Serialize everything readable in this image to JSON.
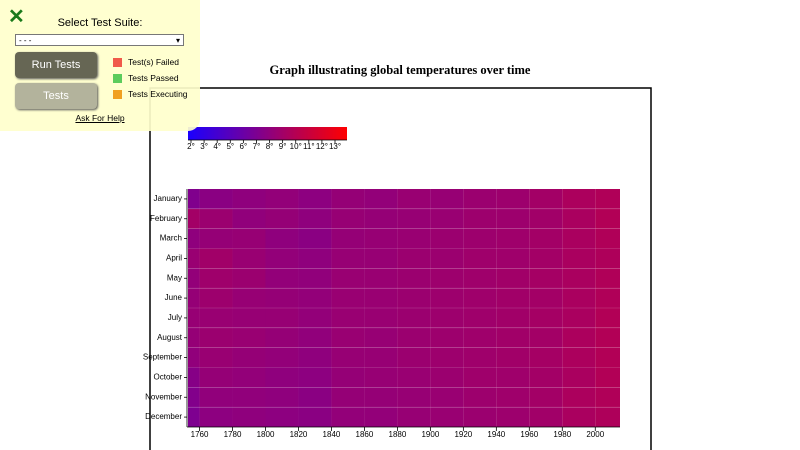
{
  "panel": {
    "heading": "Select Test Suite:",
    "select_option": "- - -",
    "run_button": "Run Tests",
    "tests_button": "Tests",
    "legend": [
      "Test(s) Failed",
      "Tests Passed",
      "Tests Executing"
    ],
    "help_link": "Ask For Help"
  },
  "chart_data": {
    "type": "heatmap",
    "title": "Graph illustrating global temperatures over time",
    "x": [
      1753,
      1760,
      1780,
      1800,
      1820,
      1840,
      1860,
      1880,
      1900,
      1920,
      1940,
      1960,
      1980,
      2000
    ],
    "xlim": [
      1753,
      2015
    ],
    "xticks": [
      1760,
      1780,
      1800,
      1820,
      1840,
      1860,
      1880,
      1900,
      1920,
      1940,
      1960,
      1980,
      2000
    ],
    "categories": [
      "January",
      "February",
      "March",
      "April",
      "May",
      "June",
      "July",
      "August",
      "September",
      "October",
      "November",
      "December"
    ],
    "values": [
      [
        6.9,
        7.4,
        7.6,
        7.8,
        7.5,
        7.9,
        7.8,
        8.1,
        8.0,
        8.2,
        8.3,
        8.6,
        9.0,
        9.2
      ],
      [
        8.6,
        8.2,
        7.7,
        7.9,
        7.6,
        8.0,
        7.9,
        8.0,
        8.1,
        8.3,
        8.3,
        8.5,
        8.9,
        9.3
      ],
      [
        7.6,
        7.9,
        8.0,
        7.6,
        7.4,
        7.9,
        8.0,
        8.1,
        8.2,
        8.3,
        8.4,
        8.6,
        8.9,
        9.2
      ],
      [
        8.1,
        8.5,
        8.1,
        7.8,
        7.6,
        8.0,
        8.0,
        8.2,
        8.2,
        8.4,
        8.4,
        8.6,
        8.9,
        9.1
      ],
      [
        7.8,
        8.4,
        8.2,
        7.8,
        7.7,
        8.1,
        8.1,
        8.2,
        8.3,
        8.4,
        8.5,
        8.7,
        8.9,
        9.2
      ],
      [
        7.9,
        8.3,
        8.0,
        7.9,
        7.8,
        8.1,
        8.1,
        8.2,
        8.3,
        8.4,
        8.5,
        8.6,
        8.9,
        9.2
      ],
      [
        8.0,
        8.1,
        8.0,
        8.0,
        7.8,
        8.1,
        8.1,
        8.2,
        8.3,
        8.4,
        8.5,
        8.7,
        8.9,
        9.3
      ],
      [
        7.9,
        8.2,
        8.1,
        7.9,
        7.7,
        8.1,
        8.0,
        8.2,
        8.3,
        8.4,
        8.5,
        8.6,
        9.0,
        9.3
      ],
      [
        7.7,
        8.1,
        7.9,
        7.8,
        7.6,
        8.0,
        8.0,
        8.2,
        8.3,
        8.4,
        8.5,
        8.7,
        9.0,
        9.3
      ],
      [
        7.2,
        7.9,
        7.8,
        7.6,
        7.5,
        7.9,
        8.0,
        8.1,
        8.2,
        8.4,
        8.4,
        8.6,
        8.9,
        9.3
      ],
      [
        7.0,
        7.7,
        7.7,
        7.6,
        7.4,
        7.9,
        7.9,
        8.0,
        8.1,
        8.3,
        8.4,
        8.6,
        9.0,
        9.2
      ],
      [
        6.8,
        7.5,
        7.6,
        7.5,
        7.4,
        7.8,
        7.8,
        8.0,
        8.1,
        8.2,
        8.3,
        8.5,
        8.9,
        9.1
      ]
    ],
    "color_range": [
      "#1a00ff",
      "#ff0000"
    ],
    "legend_ticks": [
      {
        "value": 2,
        "label": "2°"
      },
      {
        "value": 3,
        "label": "3°"
      },
      {
        "value": 4,
        "label": "4°"
      },
      {
        "value": 5,
        "label": "5°"
      },
      {
        "value": 6,
        "label": "6°"
      },
      {
        "value": 7,
        "label": "7°"
      },
      {
        "value": 8,
        "label": "8°"
      },
      {
        "value": 9,
        "label": "9°"
      },
      {
        "value": 10,
        "label": "10°"
      },
      {
        "value": 11,
        "label": "11°"
      },
      {
        "value": 12,
        "label": "12°"
      },
      {
        "value": 13,
        "label": "13°"
      }
    ],
    "grid": true
  }
}
